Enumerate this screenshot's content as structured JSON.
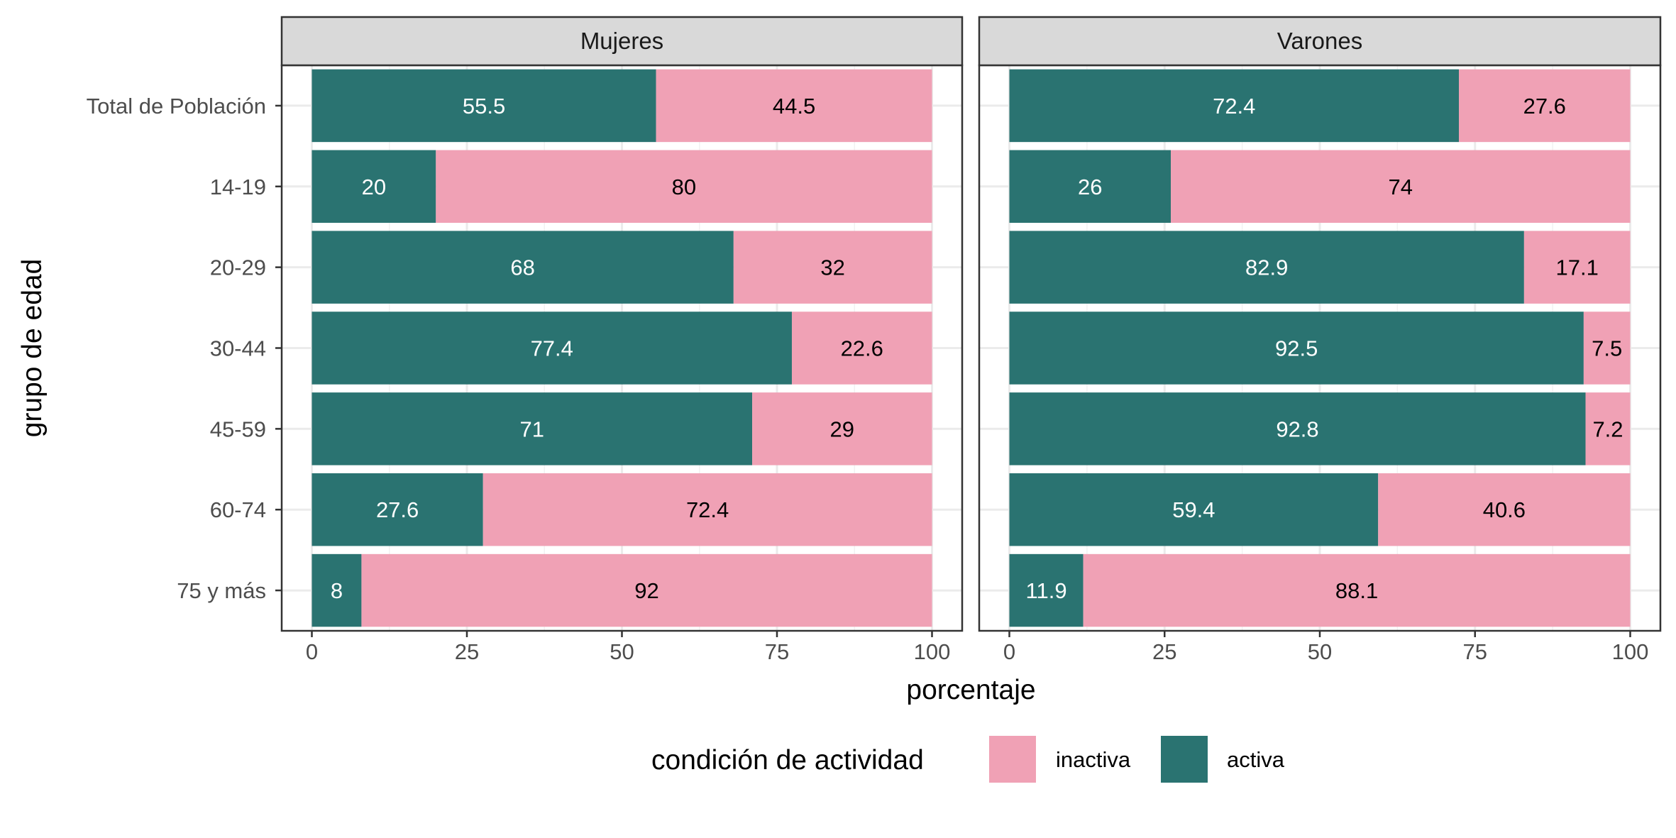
{
  "chart_data": {
    "type": "bar",
    "orientation": "horizontal",
    "stacked": true,
    "xlabel": "porcentaje",
    "ylabel": "grupo de edad",
    "xlim": [
      0,
      100
    ],
    "xticks": [
      "0",
      "25",
      "50",
      "75",
      "100"
    ],
    "categories": [
      "Total de Población",
      "14-19",
      "20-29",
      "30-44",
      "45-59",
      "60-74",
      "75 y más"
    ],
    "legend": {
      "title": "condición de actividad",
      "position": "bottom",
      "items": [
        {
          "label": "inactiva",
          "color": "#F0A1B5"
        },
        {
          "label": "activa",
          "color": "#2A7371"
        }
      ]
    },
    "grid": true,
    "facets": [
      {
        "label": "Mujeres",
        "series": [
          {
            "name": "activa",
            "color": "#2A7371",
            "values": [
              55.5,
              20,
              68,
              77.4,
              71,
              27.6,
              8
            ]
          },
          {
            "name": "inactiva",
            "color": "#F0A1B5",
            "values": [
              44.5,
              80,
              32,
              22.6,
              29,
              72.4,
              92
            ]
          }
        ]
      },
      {
        "label": "Varones",
        "series": [
          {
            "name": "activa",
            "color": "#2A7371",
            "values": [
              72.4,
              26,
              82.9,
              92.5,
              92.8,
              59.4,
              11.9
            ]
          },
          {
            "name": "inactiva",
            "color": "#F0A1B5",
            "values": [
              27.6,
              74,
              17.1,
              7.5,
              7.2,
              40.6,
              88.1
            ]
          }
        ]
      }
    ]
  }
}
